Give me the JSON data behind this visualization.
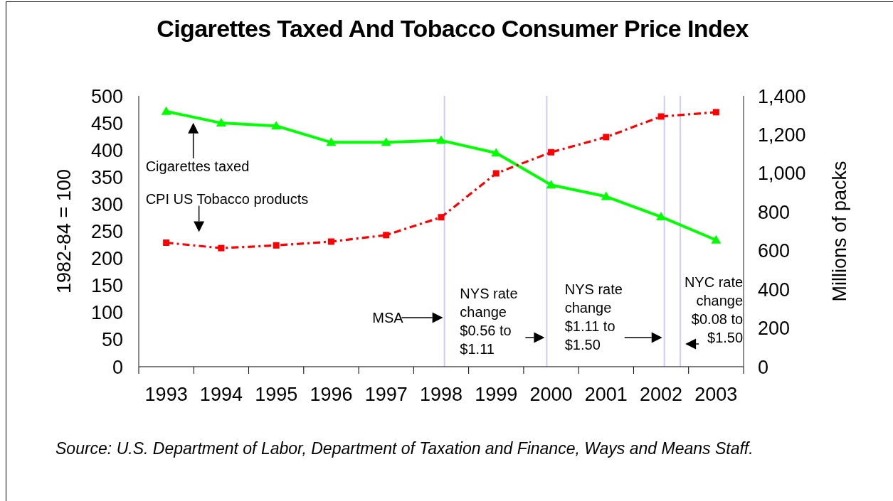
{
  "chart_data": {
    "type": "line",
    "title": "Cigarettes Taxed And Tobacco Consumer Price Index",
    "ylabel": "1982-84 = 100",
    "y2label": "Millions of packs",
    "x": [
      1993,
      1994,
      1995,
      1996,
      1997,
      1998,
      1999,
      2000,
      2001,
      2002,
      2003
    ],
    "xlim": [
      1992.5,
      2003.5
    ],
    "xticks": [
      {
        "value": 1992.5,
        "label": null
      },
      1993,
      {
        "value": 1993.5,
        "label": null
      },
      1994,
      {
        "value": 1994.5,
        "label": null
      },
      1995,
      {
        "value": 1995.5,
        "label": null
      },
      1996,
      {
        "value": 1996.5,
        "label": null
      },
      1997,
      {
        "value": 1997.5,
        "label": null
      },
      1998,
      {
        "value": 1998.5,
        "label": null
      },
      1999,
      {
        "value": 1999.5,
        "label": null
      },
      2000,
      {
        "value": 2000.5,
        "label": null
      },
      2001,
      {
        "value": 2001.5,
        "label": null
      },
      2002,
      {
        "value": 2002.5,
        "label": null
      },
      2003,
      {
        "value": 2003.5,
        "label": null
      }
    ],
    "ylim": [
      0,
      500
    ],
    "yticks": [
      0,
      50,
      100,
      150,
      200,
      250,
      300,
      350,
      400,
      450,
      500
    ],
    "y2lim": [
      0,
      1400
    ],
    "y2ticks": [
      0,
      200,
      400,
      600,
      800,
      {
        "value": 1000,
        "label": "1,000"
      },
      {
        "value": 1200,
        "label": "1,200"
      },
      {
        "value": 1400,
        "label": "1,400"
      }
    ],
    "series": [
      {
        "name": "Cigarettes taxed",
        "color": "#00ff00",
        "axis": "y2",
        "marker": "triangle",
        "line_style": "solid",
        "values": [
          1320,
          1260,
          1245,
          1160,
          1160,
          1170,
          1105,
          940,
          880,
          775,
          655
        ]
      },
      {
        "name": "CPI US Tobacco products",
        "color": "#ff0000",
        "axis": "y",
        "marker": "square",
        "line_style": "dashed",
        "values": [
          229,
          219,
          224,
          231,
          243,
          276,
          357,
          396,
          424,
          462,
          470
        ]
      }
    ],
    "ref_lines": [
      {
        "axis": "x",
        "value": 1998.06,
        "label": "MSA",
        "color": "#ccccff"
      },
      {
        "axis": "x",
        "value": 1999.92,
        "label": "NYS rate change $0.56 to $1.11",
        "color": "#ccccff"
      },
      {
        "axis": "x",
        "value": 2002.06,
        "label": "NYS rate change $1.11 to $1.50",
        "color": "#ccccff"
      },
      {
        "axis": "x",
        "value": 2002.35,
        "label": "NYC rate change $0.08 to $1.50",
        "color": "#ccccff"
      }
    ],
    "annotations": [
      "Source: U.S. Department of Labor, Department of Taxation and Finance, Ways and Means Staff."
    ]
  }
}
